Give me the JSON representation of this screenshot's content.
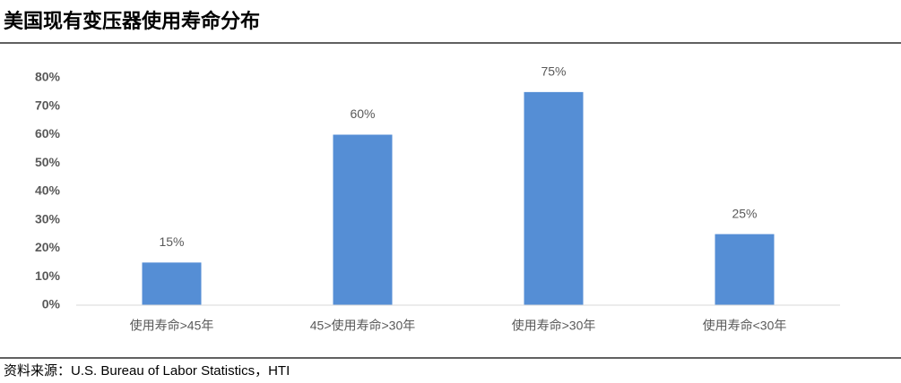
{
  "chart_data": {
    "type": "bar",
    "title": "美国现有变压器使用寿命分布",
    "categories": [
      "使用寿命>45年",
      "45>使用寿命>30年",
      "使用寿命>30年",
      "使用寿命<30年"
    ],
    "values": [
      15,
      60,
      75,
      25
    ],
    "value_labels": [
      "15%",
      "60%",
      "75%",
      "25%"
    ],
    "color": "#558ed5",
    "ylim": [
      0,
      80
    ],
    "yticks": [
      {
        "value": 0,
        "label": "0%"
      },
      {
        "value": 10,
        "label": "10%"
      },
      {
        "value": 20,
        "label": "20%"
      },
      {
        "value": 30,
        "label": "30%"
      },
      {
        "value": 40,
        "label": "40%"
      },
      {
        "value": 50,
        "label": "50%"
      },
      {
        "value": 60,
        "label": "60%"
      },
      {
        "value": 70,
        "label": "70%"
      },
      {
        "value": 80,
        "label": "80%"
      }
    ],
    "grid": false,
    "source": "资料来源：U.S. Bureau of Labor Statistics，HTI"
  }
}
